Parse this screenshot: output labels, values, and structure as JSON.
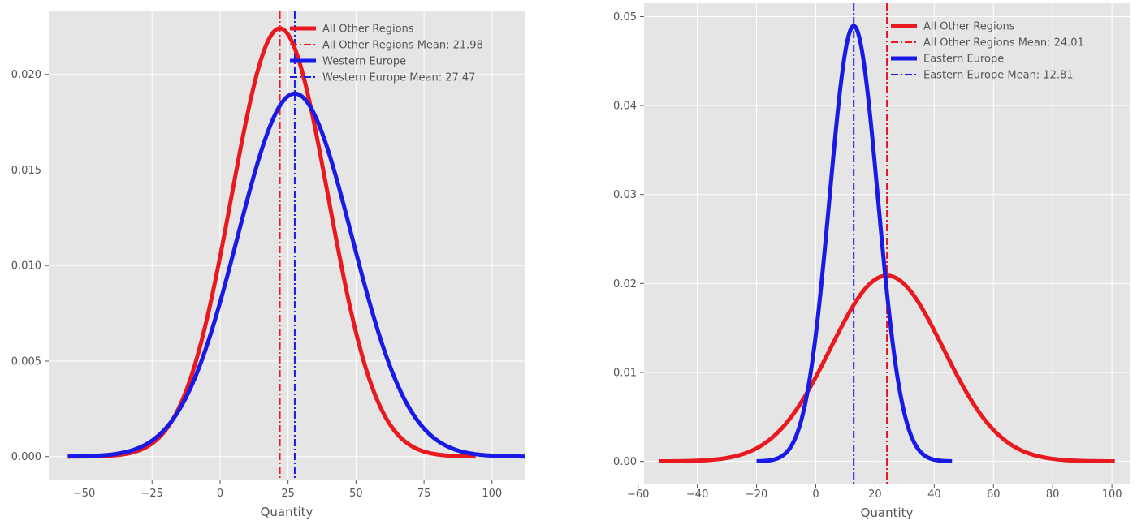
{
  "chart_data": [
    {
      "type": "line",
      "title": "",
      "xlabel": "Quantity",
      "ylabel": "",
      "xlim": [
        -63,
        112
      ],
      "ylim": [
        -0.0012,
        0.0233
      ],
      "xticks": [
        -50,
        -25,
        0,
        25,
        50,
        75,
        100
      ],
      "xtick_labels": [
        "−50",
        "−25",
        "0",
        "25",
        "50",
        "75",
        "100"
      ],
      "yticks": [
        0.0,
        0.005,
        0.01,
        0.015,
        0.02
      ],
      "ytick_labels": [
        "0.000",
        "0.005",
        "0.010",
        "0.015",
        "0.020"
      ],
      "grid": true,
      "legend_position": "top-right",
      "series": [
        {
          "name": "All Other Regions",
          "style": "solid",
          "color": "#e8191f",
          "mean": 21.98,
          "std": 17.8,
          "x_range": [
            -56,
            94
          ]
        },
        {
          "name": "All Other Regions Mean: 21.98",
          "style": "dashdot",
          "color": "#e8191f",
          "x": 21.98
        },
        {
          "name": "Western Europe",
          "style": "solid",
          "color": "#1a1ae6",
          "mean": 27.47,
          "std": 21.0,
          "x_range": [
            -56,
            112
          ]
        },
        {
          "name": "Western Europe Mean: 27.47",
          "style": "dashdot",
          "color": "#1a1ae6",
          "x": 27.47
        }
      ]
    },
    {
      "type": "line",
      "title": "",
      "xlabel": "Quantity",
      "ylabel": "",
      "xlim": [
        -58,
        106
      ],
      "ylim": [
        -0.0025,
        0.0515
      ],
      "xticks": [
        -60,
        -40,
        -20,
        0,
        20,
        40,
        60,
        80,
        100
      ],
      "xtick_labels": [
        "−60",
        "−40",
        "−20",
        "0",
        "20",
        "40",
        "60",
        "80",
        "100"
      ],
      "yticks": [
        0.0,
        0.01,
        0.02,
        0.03,
        0.04,
        0.05
      ],
      "ytick_labels": [
        "0.00",
        "0.01",
        "0.02",
        "0.03",
        "0.04",
        "0.05"
      ],
      "grid": true,
      "legend_position": "top-right",
      "series": [
        {
          "name": "All Other Regions",
          "style": "solid",
          "color": "#e8191f",
          "mean": 24.01,
          "std": 19.1,
          "x_range": [
            -53,
            101
          ]
        },
        {
          "name": "All Other Regions Mean: 24.01",
          "style": "dashdot",
          "color": "#e8191f",
          "x": 24.01
        },
        {
          "name": "Eastern Europe",
          "style": "solid",
          "color": "#1a1ae6",
          "mean": 12.81,
          "std": 8.15,
          "x_range": [
            -20,
            46
          ]
        },
        {
          "name": "Eastern Europe Mean: 12.81",
          "style": "dashdot",
          "color": "#1a1ae6",
          "x": 12.81
        }
      ]
    }
  ]
}
